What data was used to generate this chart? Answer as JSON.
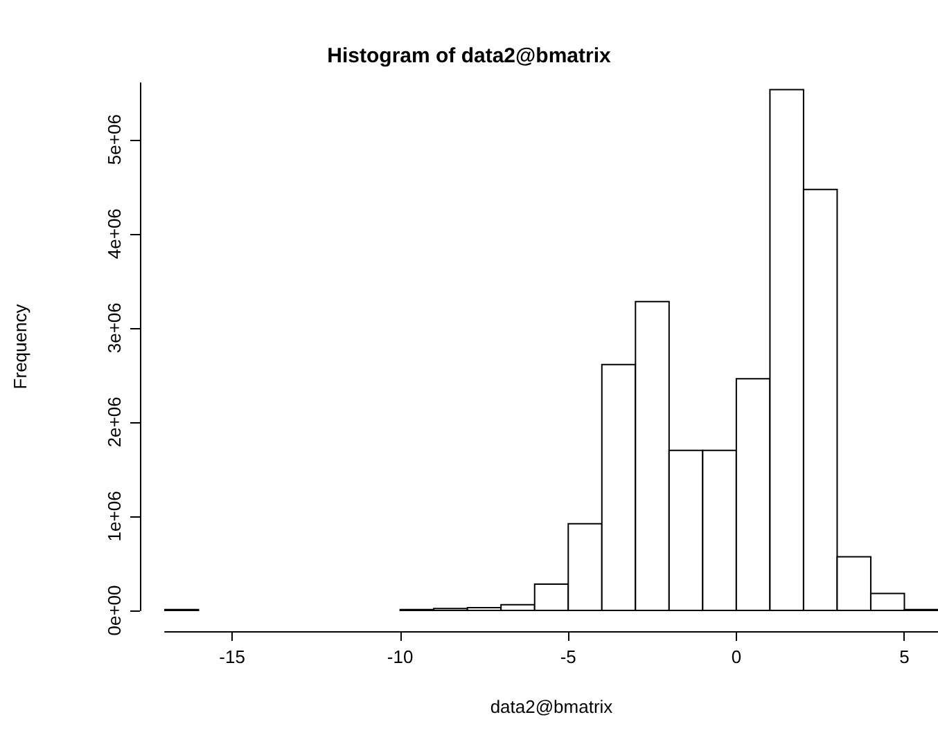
{
  "chart_data": {
    "type": "histogram",
    "title": "Histogram of data2@bmatrix",
    "xlabel": "data2@bmatrix",
    "ylabel": "Frequency",
    "bins": [
      -17,
      -16,
      -15,
      -14,
      -13,
      -12,
      -11,
      -10,
      -9,
      -8,
      -7,
      -6,
      -5,
      -4,
      -3,
      -2,
      -1,
      0,
      1,
      2,
      3,
      4,
      5,
      6
    ],
    "values": [
      10000,
      0,
      0,
      0,
      0,
      0,
      0,
      10000,
      20000,
      30000,
      60000,
      280000,
      920000,
      2610000,
      3280000,
      1700000,
      1700000,
      2460000,
      5530000,
      4470000,
      570000,
      180000,
      10000
    ],
    "color": "#ffffff",
    "xlim": [
      -17,
      6
    ],
    "xticks": [
      -15,
      -10,
      -5,
      0,
      5
    ],
    "ylim": [
      0,
      5600000
    ],
    "yticks": [
      {
        "value": 0,
        "label": "0e+00"
      },
      {
        "value": 1000000,
        "label": "1e+06"
      },
      {
        "value": 2000000,
        "label": "2e+06"
      },
      {
        "value": 3000000,
        "label": "3e+06"
      },
      {
        "value": 4000000,
        "label": "4e+06"
      },
      {
        "value": 5000000,
        "label": "5e+06"
      }
    ],
    "grid": false
  }
}
